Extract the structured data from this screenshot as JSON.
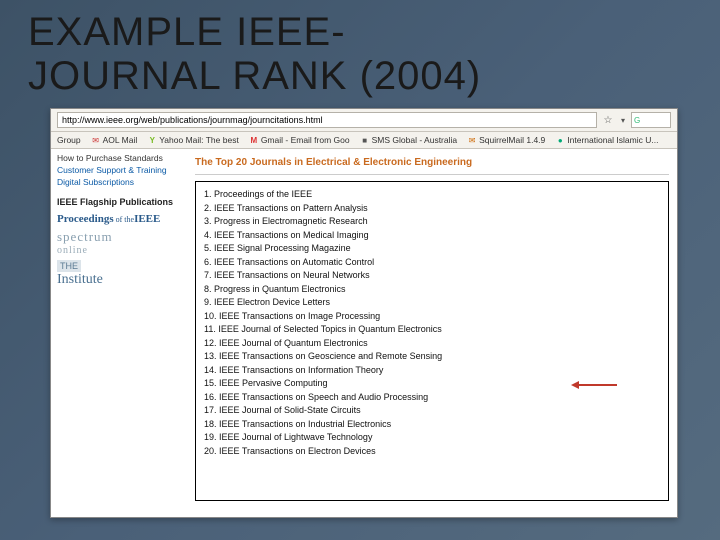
{
  "slide": {
    "title_line1": "EXAMPLE IEEE-",
    "title_line2": "JOURNAL RANK (2004)"
  },
  "browser": {
    "url": "http://www.ieee.org/web/publications/journmag/journcitations.html",
    "star_glyph": "☆",
    "dropdown_glyph": "▾",
    "search_icon": "G"
  },
  "bookmarks": {
    "group_label": "Group",
    "items": [
      {
        "icon": "✉",
        "icon_color": "#c33",
        "label": "AOL Mail"
      },
      {
        "icon": "Y",
        "icon_color": "#7b2",
        "label": "Yahoo Mail: The best"
      },
      {
        "icon": "M",
        "icon_color": "#d33",
        "label": "Gmail - Email from Goo"
      },
      {
        "icon": "■",
        "icon_color": "#555",
        "label": "SMS Global - Australia"
      },
      {
        "icon": "✉",
        "icon_color": "#c60",
        "label": "SquirrelMail 1.4.9"
      },
      {
        "icon": "●",
        "icon_color": "#0a7",
        "label": "International Islamic U..."
      }
    ]
  },
  "sidebar": {
    "links": [
      {
        "text": "How to Purchase Standards",
        "color": "plain"
      },
      {
        "text": "Customer Support & Training",
        "color": "link"
      },
      {
        "text": "Digital Subscriptions",
        "color": "link"
      }
    ],
    "flagship_heading": "IEEE Flagship Publications",
    "logos": {
      "proceedings": {
        "small": "Proceedings",
        "of": "of the",
        "ieee": "IEEE"
      },
      "spectrum": {
        "word": "spectrum",
        "sub": "online"
      },
      "institute": {
        "box": "THE",
        "word": "Institute"
      }
    }
  },
  "ranking": {
    "heading": "The Top 20 Journals in Electrical & Electronic Engineering",
    "items": [
      "Proceedings of the IEEE",
      "IEEE Transactions on Pattern Analysis",
      "Progress in Electromagnetic Research",
      "IEEE Transactions on Medical Imaging",
      "IEEE Signal Processing Magazine",
      "IEEE Transactions on Automatic Control",
      "IEEE Transactions on Neural Networks",
      "Progress in Quantum Electronics",
      "IEEE Electron Device Letters",
      "IEEE Transactions on Image Processing",
      "IEEE Journal of Selected Topics in Quantum Electronics",
      "IEEE Journal of Quantum Electronics",
      "IEEE Transactions on Geoscience and Remote Sensing",
      "IEEE Transactions on Information Theory",
      "IEEE Pervasive Computing",
      "IEEE Transactions on Speech and Audio Processing",
      "IEEE Journal of Solid-State Circuits",
      "IEEE Transactions on Industrial Electronics",
      "IEEE Journal of Lightwave Technology",
      "IEEE Transactions on Electron Devices"
    ],
    "arrow_color": "#c0392b",
    "arrow_points_to_index": 14
  },
  "colors": {
    "slide_bg_from": "#3d5266",
    "slide_bg_to": "#556b7f",
    "heading_orange": "#c96a1f",
    "link_blue": "#0b5aa6"
  }
}
